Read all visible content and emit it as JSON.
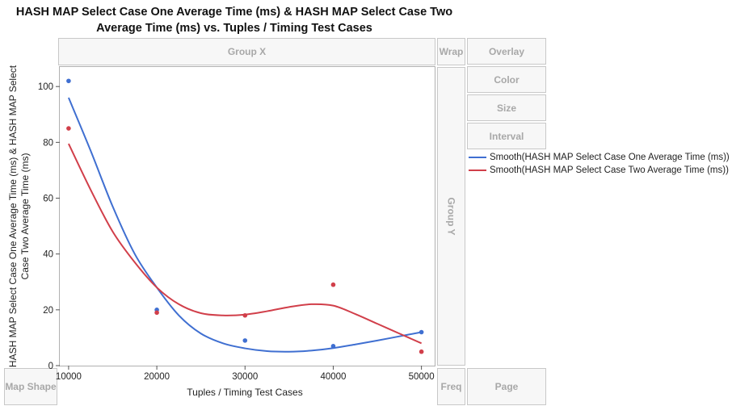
{
  "title_line1": "HASH MAP Select Case One Average Time (ms) & HASH MAP Select Case Two",
  "title_line2": "Average Time (ms) vs. Tuples / Timing Test Cases",
  "zones": {
    "group_x": "Group X",
    "group_y": "Group Y",
    "wrap": "Wrap",
    "overlay": "Overlay",
    "color": "Color",
    "size": "Size",
    "interval": "Interval",
    "map_shape": "Map Shape",
    "freq": "Freq",
    "page": "Page"
  },
  "chart_data": {
    "type": "scatter",
    "xlabel": "Tuples / Timing Test Cases",
    "ylabel_line1": "HASH MAP Select Case One Average Time (ms) & HASH MAP Select",
    "ylabel_line2": "Case Two Average Time (ms)",
    "x_ticks": [
      10000,
      20000,
      30000,
      40000,
      50000
    ],
    "y_ticks": [
      0,
      20,
      40,
      60,
      80,
      100
    ],
    "xlim": [
      9000,
      51500
    ],
    "ylim": [
      0,
      107
    ],
    "grid": false,
    "legend_position": "right",
    "series": [
      {
        "name": "Smooth(HASH MAP Select Case One Average Time (ms))",
        "color": "#3f6fd1",
        "points": [
          [
            10000,
            102
          ],
          [
            20000,
            20
          ],
          [
            30000,
            9
          ],
          [
            40000,
            7
          ],
          [
            50000,
            12
          ]
        ],
        "smooth": [
          [
            10000,
            96
          ],
          [
            12500,
            77
          ],
          [
            15000,
            57
          ],
          [
            17500,
            40
          ],
          [
            20000,
            28
          ],
          [
            22500,
            18
          ],
          [
            25000,
            11.5
          ],
          [
            27500,
            8
          ],
          [
            30000,
            6.2
          ],
          [
            32500,
            5.2
          ],
          [
            35000,
            5
          ],
          [
            37500,
            5.4
          ],
          [
            40000,
            6.3
          ],
          [
            42500,
            7.6
          ],
          [
            45000,
            9
          ],
          [
            47500,
            10.5
          ],
          [
            50000,
            12
          ]
        ]
      },
      {
        "name": "Smooth(HASH MAP Select Case Two Average Time (ms))",
        "color": "#d13f4a",
        "points": [
          [
            10000,
            85
          ],
          [
            20000,
            19
          ],
          [
            30000,
            18
          ],
          [
            40000,
            29
          ],
          [
            50000,
            5
          ]
        ],
        "smooth": [
          [
            10000,
            79.5
          ],
          [
            12500,
            63
          ],
          [
            15000,
            48
          ],
          [
            17500,
            37
          ],
          [
            20000,
            28
          ],
          [
            22500,
            22
          ],
          [
            25000,
            18.8
          ],
          [
            27500,
            18
          ],
          [
            30000,
            18.3
          ],
          [
            32500,
            19.5
          ],
          [
            35000,
            21
          ],
          [
            37500,
            22
          ],
          [
            40000,
            21.5
          ],
          [
            42500,
            18.5
          ],
          [
            45000,
            15
          ],
          [
            47500,
            11.5
          ],
          [
            50000,
            8
          ]
        ]
      }
    ]
  }
}
